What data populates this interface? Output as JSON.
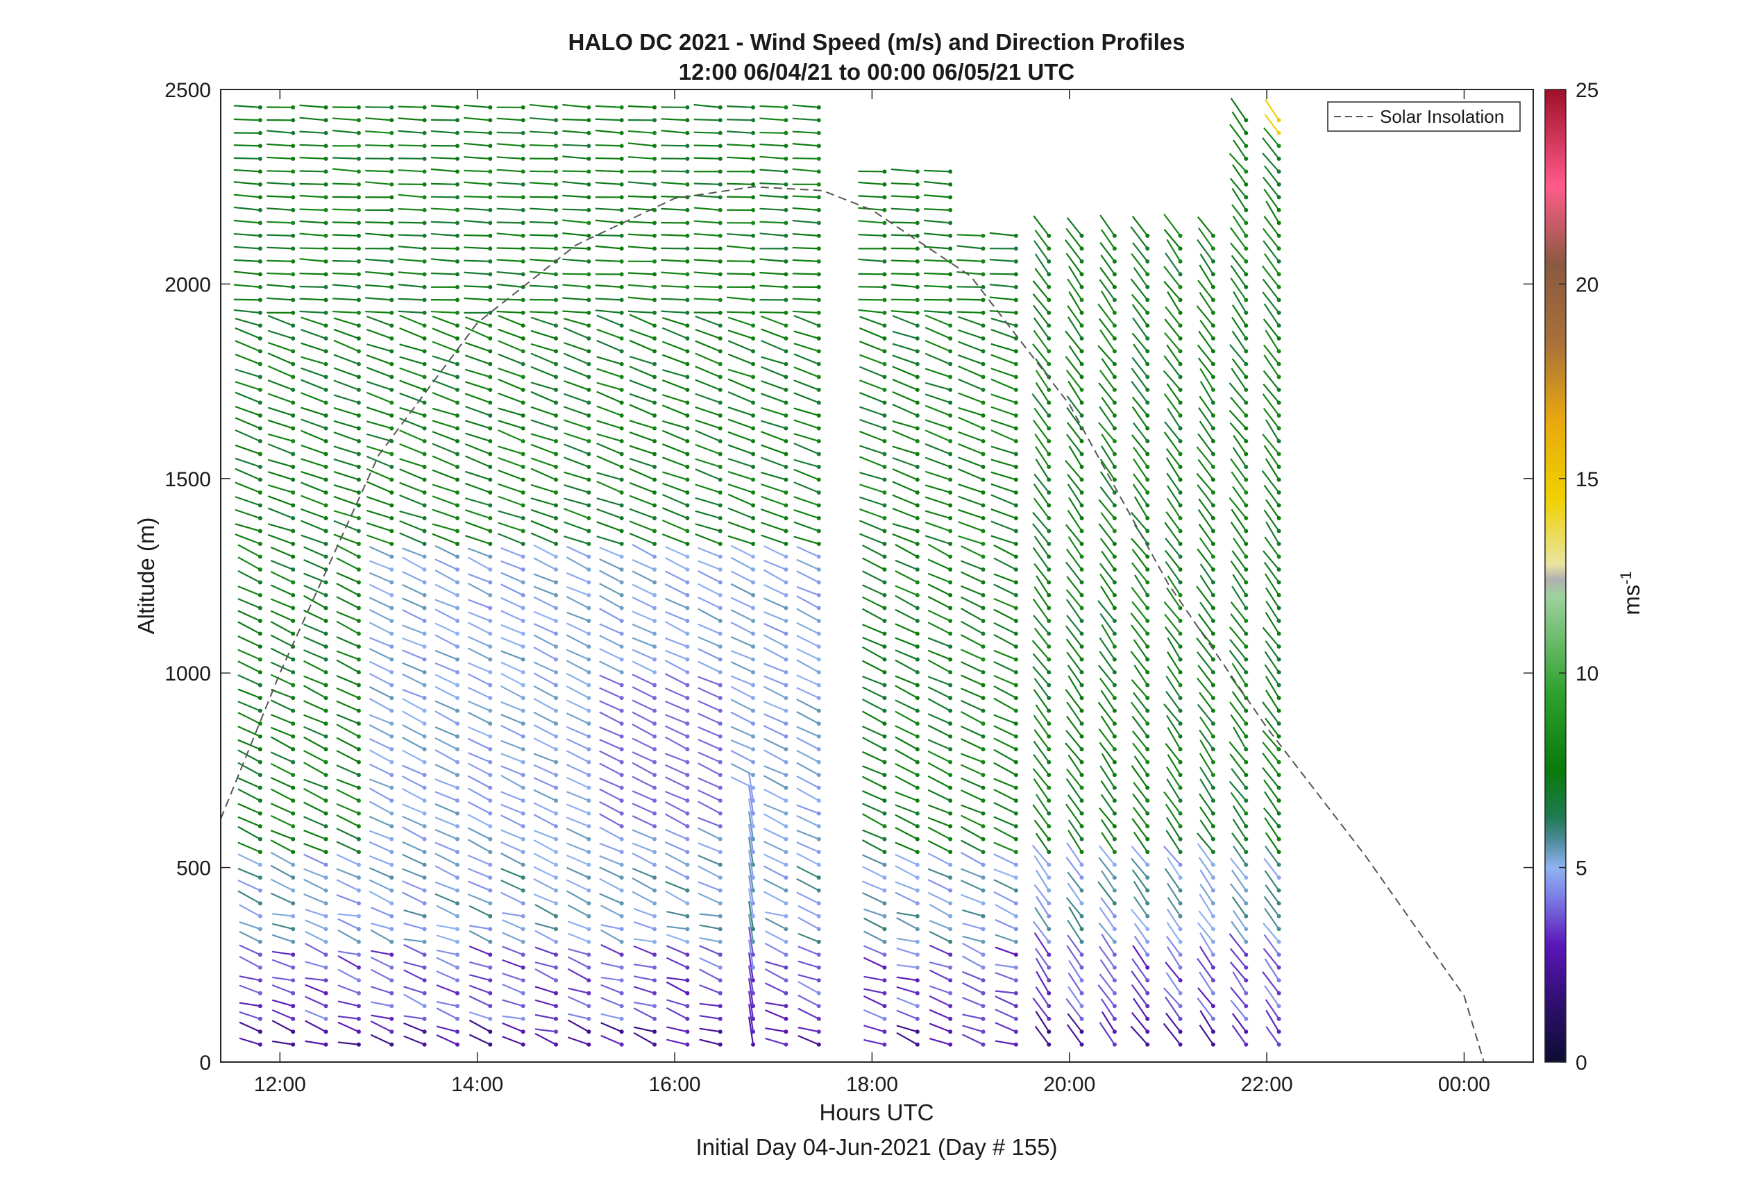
{
  "chart_data": {
    "type": "wind-barb-profile",
    "title": "HALO DC 2021 - Wind Speed (m/s) and Direction Profiles",
    "subtitle": "12:00 06/04/21 to 00:00 06/05/21  UTC",
    "xlabel": "Hours UTC",
    "xlabel_note": "Initial Day 04-Jun-2021 (Day # 155)",
    "ylabel": "Altitude (m)",
    "xlim_hours_utc": [
      11.4,
      24.7
    ],
    "ylim_m": [
      0,
      2500
    ],
    "xticks": [
      {
        "hour": 12,
        "label": "12:00"
      },
      {
        "hour": 14,
        "label": "14:00"
      },
      {
        "hour": 16,
        "label": "16:00"
      },
      {
        "hour": 18,
        "label": "18:00"
      },
      {
        "hour": 20,
        "label": "20:00"
      },
      {
        "hour": 22,
        "label": "22:00"
      },
      {
        "hour": 24,
        "label": "00:00"
      }
    ],
    "yticks": [
      0,
      500,
      1000,
      1500,
      2000,
      2500
    ],
    "colorbar": {
      "label": "ms",
      "label_exponent": "-1",
      "range": [
        0,
        25
      ],
      "ticks": [
        0,
        5,
        10,
        15,
        20,
        25
      ],
      "stops": [
        {
          "v": 0,
          "c": "#0d0d33"
        },
        {
          "v": 1.5,
          "c": "#2e0f6e"
        },
        {
          "v": 3,
          "c": "#5a16b8"
        },
        {
          "v": 4.3,
          "c": "#7d82e6"
        },
        {
          "v": 5,
          "c": "#8fb3f2"
        },
        {
          "v": 5.7,
          "c": "#4d8a99"
        },
        {
          "v": 6.3,
          "c": "#1f7a52"
        },
        {
          "v": 7.5,
          "c": "#0a7a0a"
        },
        {
          "v": 9.5,
          "c": "#2ea12e"
        },
        {
          "v": 12,
          "c": "#9fd19f"
        },
        {
          "v": 12.4,
          "c": "#b0b0b0"
        },
        {
          "v": 12.8,
          "c": "#e8e4a0"
        },
        {
          "v": 14.5,
          "c": "#f0d000"
        },
        {
          "v": 16.5,
          "c": "#e8a810"
        },
        {
          "v": 18.5,
          "c": "#a8703a"
        },
        {
          "v": 20.5,
          "c": "#8a5a40"
        },
        {
          "v": 22.5,
          "c": "#ff5c8a"
        },
        {
          "v": 25,
          "c": "#a0102a"
        }
      ]
    },
    "legend": {
      "entries": [
        "Solar Insolation"
      ],
      "placement": "top-right"
    },
    "solar_insolation": {
      "style": "dashed",
      "color": "#555555",
      "points": [
        [
          11.4,
          625
        ],
        [
          12.0,
          1000
        ],
        [
          13.0,
          1560
        ],
        [
          14.0,
          1900
        ],
        [
          15.0,
          2100
        ],
        [
          16.0,
          2220
        ],
        [
          16.8,
          2250
        ],
        [
          17.5,
          2240
        ],
        [
          18.0,
          2190
        ],
        [
          19.0,
          2020
        ],
        [
          20.0,
          1690
        ],
        [
          21.0,
          1230
        ],
        [
          22.0,
          860
        ],
        [
          23.0,
          530
        ],
        [
          24.0,
          170
        ],
        [
          24.2,
          0
        ],
        [
          24.7,
          0
        ]
      ]
    },
    "profiles": {
      "time_start_hours": 11.8,
      "time_step_hours": 0.333,
      "count": 32,
      "altitude_step_m": 33,
      "gap_hours": [
        [
          17.55,
          18.0
        ]
      ],
      "speed_regimes": [
        {
          "below_m": 100,
          "speed_ms": 2.8
        },
        {
          "below_m": 300,
          "speed_ms": 3.8
        },
        {
          "below_m": 520,
          "speed_ms": 5.2
        },
        {
          "below_m": 2500,
          "speed_ms": 7.5
        }
      ],
      "direction_note": "barbs slope from westerly aloft to north-westerly below 1500 m; bundled southerly barbs near 16:45"
    }
  }
}
